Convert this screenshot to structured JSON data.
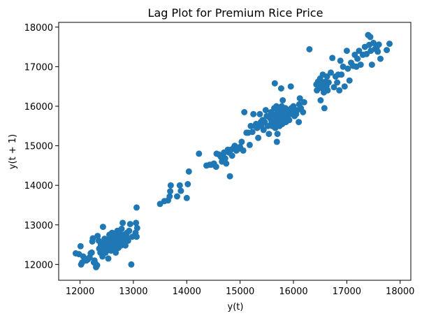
{
  "chart_data": {
    "type": "scatter",
    "title": "Lag Plot for Premium Rice Price",
    "xlabel": "y(t)",
    "ylabel": "y(t + 1)",
    "xlim": [
      11600,
      18200
    ],
    "ylim": [
      11600,
      18120
    ],
    "xticks": [
      12000,
      13000,
      14000,
      15000,
      16000,
      17000,
      18000
    ],
    "yticks": [
      12000,
      13000,
      14000,
      15000,
      16000,
      17000,
      18000
    ],
    "grid": false,
    "legend": "none",
    "series": [
      {
        "color": "#1f77b4",
        "points": [
          [
            11920,
            12280
          ],
          [
            11980,
            12260
          ],
          [
            12010,
            12460
          ],
          [
            12020,
            12000
          ],
          [
            12040,
            12050
          ],
          [
            12060,
            12200
          ],
          [
            12090,
            12150
          ],
          [
            12120,
            12100
          ],
          [
            12150,
            12130
          ],
          [
            12180,
            12180
          ],
          [
            12200,
            12280
          ],
          [
            12220,
            12300
          ],
          [
            12230,
            12580
          ],
          [
            12240,
            12660
          ],
          [
            12260,
            12050
          ],
          [
            12270,
            12100
          ],
          [
            12290,
            12020
          ],
          [
            12300,
            11930
          ],
          [
            12320,
            11980
          ],
          [
            12330,
            12720
          ],
          [
            12350,
            12600
          ],
          [
            12360,
            12400
          ],
          [
            12380,
            12300
          ],
          [
            12390,
            12500
          ],
          [
            12400,
            12350
          ],
          [
            12410,
            12450
          ],
          [
            12420,
            12200
          ],
          [
            12430,
            12950
          ],
          [
            12450,
            12550
          ],
          [
            12460,
            12650
          ],
          [
            12470,
            12400
          ],
          [
            12480,
            12300
          ],
          [
            12490,
            12500
          ],
          [
            12500,
            12420
          ],
          [
            12510,
            12360
          ],
          [
            12520,
            12600
          ],
          [
            12530,
            12150
          ],
          [
            12540,
            12480
          ],
          [
            12550,
            12750
          ],
          [
            12560,
            12560
          ],
          [
            12570,
            12680
          ],
          [
            12580,
            12350
          ],
          [
            12590,
            12500
          ],
          [
            12600,
            12800
          ],
          [
            12610,
            12450
          ],
          [
            12620,
            12620
          ],
          [
            12630,
            12700
          ],
          [
            12640,
            12550
          ],
          [
            12650,
            12380
          ],
          [
            12660,
            12480
          ],
          [
            12670,
            12300
          ],
          [
            12680,
            12720
          ],
          [
            12690,
            12580
          ],
          [
            12700,
            12850
          ],
          [
            12710,
            12650
          ],
          [
            12720,
            12420
          ],
          [
            12730,
            12500
          ],
          [
            12740,
            12780
          ],
          [
            12750,
            12600
          ],
          [
            12760,
            12700
          ],
          [
            12770,
            12480
          ],
          [
            12780,
            12900
          ],
          [
            12790,
            12560
          ],
          [
            12800,
            13050
          ],
          [
            12810,
            12650
          ],
          [
            12820,
            12750
          ],
          [
            12840,
            12600
          ],
          [
            12850,
            12480
          ],
          [
            12870,
            12700
          ],
          [
            12880,
            12800
          ],
          [
            12900,
            12600
          ],
          [
            12920,
            12850
          ],
          [
            12940,
            13020
          ],
          [
            12960,
            12000
          ],
          [
            12980,
            12700
          ],
          [
            13040,
            12800
          ],
          [
            13050,
            13050
          ],
          [
            13060,
            12700
          ],
          [
            13070,
            12920
          ],
          [
            13060,
            13440
          ],
          [
            13500,
            13530
          ],
          [
            13580,
            13600
          ],
          [
            13650,
            13620
          ],
          [
            13680,
            13720
          ],
          [
            13700,
            14000
          ],
          [
            13690,
            13850
          ],
          [
            13820,
            13720
          ],
          [
            13870,
            14000
          ],
          [
            13890,
            13860
          ],
          [
            14000,
            13680
          ],
          [
            14020,
            14030
          ],
          [
            14040,
            14350
          ],
          [
            14230,
            14800
          ],
          [
            14370,
            14500
          ],
          [
            14430,
            14520
          ],
          [
            14460,
            14520
          ],
          [
            14510,
            14550
          ],
          [
            14550,
            14470
          ],
          [
            14560,
            14800
          ],
          [
            14600,
            14780
          ],
          [
            14640,
            14720
          ],
          [
            14660,
            14600
          ],
          [
            14680,
            14750
          ],
          [
            14700,
            14830
          ],
          [
            14720,
            14680
          ],
          [
            14740,
            14550
          ],
          [
            14770,
            14900
          ],
          [
            14790,
            14830
          ],
          [
            14810,
            14230
          ],
          [
            14830,
            14900
          ],
          [
            14850,
            14750
          ],
          [
            14880,
            14950
          ],
          [
            14900,
            15000
          ],
          [
            14930,
            14880
          ],
          [
            14970,
            14920
          ],
          [
            15000,
            14970
          ],
          [
            15030,
            15100
          ],
          [
            15060,
            14880
          ],
          [
            15080,
            15850
          ],
          [
            15120,
            15330
          ],
          [
            15150,
            15330
          ],
          [
            15180,
            15020
          ],
          [
            15200,
            15500
          ],
          [
            15230,
            15350
          ],
          [
            15250,
            15800
          ],
          [
            15280,
            15500
          ],
          [
            15300,
            15550
          ],
          [
            15320,
            15450
          ],
          [
            15340,
            15200
          ],
          [
            15370,
            15800
          ],
          [
            15390,
            15600
          ],
          [
            15400,
            15500
          ],
          [
            15420,
            15650
          ],
          [
            15440,
            15400
          ],
          [
            15460,
            15600
          ],
          [
            15480,
            15900
          ],
          [
            15500,
            15750
          ],
          [
            15520,
            15500
          ],
          [
            15540,
            15300
          ],
          [
            15560,
            15700
          ],
          [
            15580,
            15850
          ],
          [
            15590,
            15600
          ],
          [
            15600,
            15500
          ],
          [
            15620,
            15750
          ],
          [
            15640,
            15950
          ],
          [
            15650,
            15680
          ],
          [
            15660,
            15450
          ],
          [
            15670,
            15800
          ],
          [
            15680,
            16000
          ],
          [
            15690,
            15550
          ],
          [
            15700,
            15300
          ],
          [
            15710,
            15600
          ],
          [
            15720,
            15850
          ],
          [
            15730,
            15700
          ],
          [
            15740,
            15500
          ],
          [
            15750,
            15950
          ],
          [
            15760,
            15800
          ],
          [
            15770,
            15650
          ],
          [
            15780,
            16000
          ],
          [
            15790,
            15550
          ],
          [
            15800,
            15750
          ],
          [
            15810,
            15900
          ],
          [
            15820,
            15650
          ],
          [
            15830,
            15820
          ],
          [
            15840,
            15700
          ],
          [
            15850,
            15950
          ],
          [
            15860,
            15600
          ],
          [
            15870,
            15800
          ],
          [
            15880,
            15700
          ],
          [
            15900,
            15900
          ],
          [
            15920,
            15650
          ],
          [
            15940,
            15800
          ],
          [
            15960,
            15950
          ],
          [
            15980,
            15850
          ],
          [
            16000,
            16000
          ],
          [
            16020,
            15750
          ],
          [
            16050,
            15800
          ],
          [
            16070,
            15900
          ],
          [
            16100,
            15600
          ],
          [
            16110,
            16050
          ],
          [
            16120,
            16200
          ],
          [
            16140,
            15950
          ],
          [
            16180,
            15850
          ],
          [
            16200,
            16100
          ],
          [
            15650,
            16580
          ],
          [
            15770,
            16450
          ],
          [
            15800,
            16150
          ],
          [
            15690,
            15100
          ],
          [
            15950,
            16500
          ],
          [
            16300,
            17440
          ],
          [
            16430,
            16550
          ],
          [
            16440,
            16400
          ],
          [
            16460,
            16620
          ],
          [
            16480,
            16500
          ],
          [
            16500,
            16700
          ],
          [
            16510,
            16150
          ],
          [
            16520,
            16550
          ],
          [
            16540,
            16450
          ],
          [
            16550,
            16800
          ],
          [
            16560,
            16600
          ],
          [
            16570,
            16350
          ],
          [
            16580,
            15950
          ],
          [
            16600,
            16620
          ],
          [
            16620,
            16500
          ],
          [
            16630,
            16750
          ],
          [
            16640,
            16400
          ],
          [
            16660,
            16600
          ],
          [
            16700,
            16850
          ],
          [
            16730,
            17220
          ],
          [
            16760,
            16480
          ],
          [
            16790,
            16750
          ],
          [
            16820,
            16600
          ],
          [
            16840,
            16800
          ],
          [
            16860,
            16400
          ],
          [
            16880,
            17150
          ],
          [
            16900,
            16800
          ],
          [
            16930,
            17000
          ],
          [
            16960,
            16500
          ],
          [
            17000,
            17400
          ],
          [
            17020,
            16950
          ],
          [
            17050,
            16650
          ],
          [
            17080,
            17100
          ],
          [
            17120,
            17020
          ],
          [
            17150,
            17300
          ],
          [
            17180,
            17000
          ],
          [
            17200,
            17200
          ],
          [
            17230,
            17400
          ],
          [
            17260,
            17050
          ],
          [
            17300,
            17300
          ],
          [
            17340,
            17500
          ],
          [
            17370,
            17320
          ],
          [
            17400,
            17800
          ],
          [
            17420,
            17550
          ],
          [
            17440,
            17750
          ],
          [
            17450,
            17400
          ],
          [
            17470,
            17050
          ],
          [
            17500,
            17600
          ],
          [
            17530,
            17450
          ],
          [
            17560,
            17480
          ],
          [
            17580,
            17380
          ],
          [
            17600,
            17560
          ],
          [
            17630,
            17200
          ],
          [
            17750,
            17420
          ],
          [
            17800,
            17580
          ]
        ]
      }
    ]
  }
}
